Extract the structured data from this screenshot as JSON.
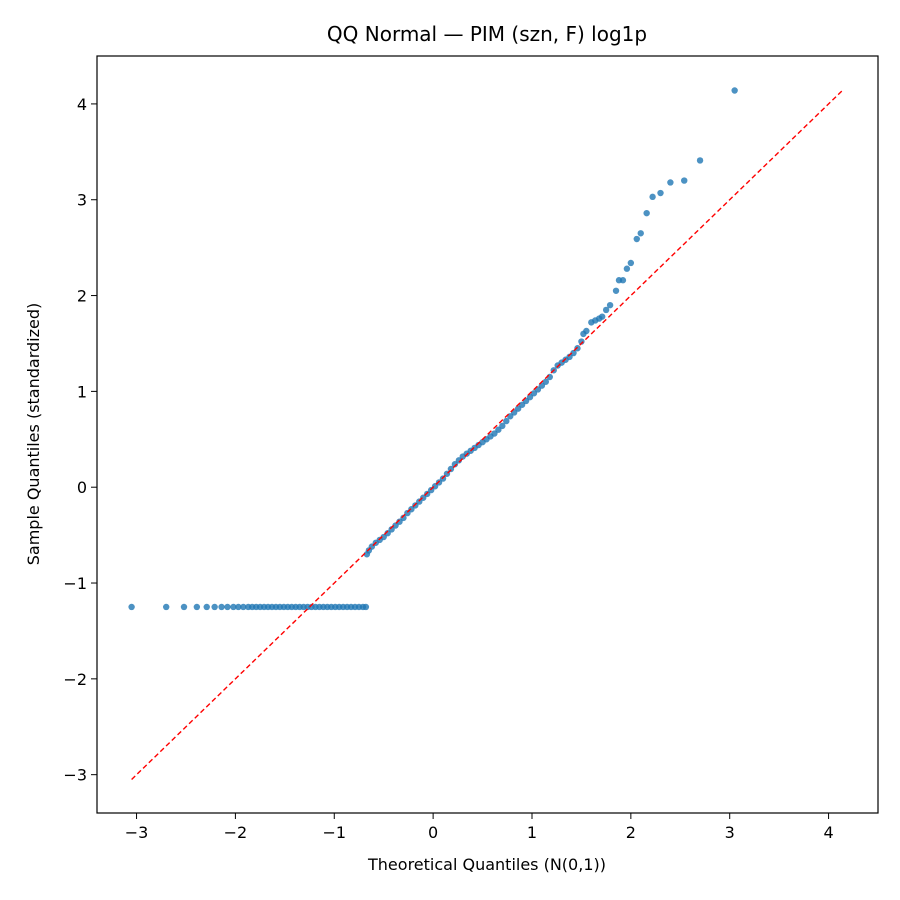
{
  "chart_data": {
    "type": "scatter",
    "title": "QQ Normal — PIM (szn, F) log1p",
    "xlabel": "Theoretical Quantiles (N(0,1))",
    "ylabel": "Sample Quantiles (standardized)",
    "xlim": [
      -3.4,
      4.5
    ],
    "ylim": [
      -3.4,
      4.5
    ],
    "xticks": [
      -3,
      -2,
      -1,
      0,
      1,
      2,
      3,
      4
    ],
    "yticks": [
      -3,
      -2,
      -1,
      0,
      1,
      2,
      3,
      4
    ],
    "grid": false,
    "colors": {
      "points": "#1f77b4",
      "reference_line": "#ff0000"
    },
    "reference_line": {
      "style": "dashed",
      "from": [
        -3.05,
        -3.05
      ],
      "to": [
        4.14,
        4.14
      ]
    },
    "series": [
      {
        "values": [
          [
            -3.05,
            -1.25
          ],
          [
            -2.7,
            -1.25
          ],
          [
            -2.52,
            -1.25
          ],
          [
            -2.39,
            -1.25
          ],
          [
            -2.29,
            -1.25
          ],
          [
            -2.21,
            -1.25
          ],
          [
            -2.14,
            -1.25
          ],
          [
            -2.08,
            -1.25
          ],
          [
            -2.02,
            -1.25
          ],
          [
            -1.97,
            -1.25
          ],
          [
            -1.92,
            -1.25
          ],
          [
            -1.87,
            -1.25
          ],
          [
            -1.83,
            -1.25
          ],
          [
            -1.79,
            -1.25
          ],
          [
            -1.75,
            -1.25
          ],
          [
            -1.71,
            -1.25
          ],
          [
            -1.67,
            -1.25
          ],
          [
            -1.63,
            -1.25
          ],
          [
            -1.59,
            -1.25
          ],
          [
            -1.55,
            -1.25
          ],
          [
            -1.51,
            -1.25
          ],
          [
            -1.47,
            -1.25
          ],
          [
            -1.43,
            -1.25
          ],
          [
            -1.39,
            -1.25
          ],
          [
            -1.35,
            -1.25
          ],
          [
            -1.31,
            -1.25
          ],
          [
            -1.27,
            -1.25
          ],
          [
            -1.23,
            -1.25
          ],
          [
            -1.19,
            -1.25
          ],
          [
            -1.15,
            -1.25
          ],
          [
            -1.11,
            -1.25
          ],
          [
            -1.07,
            -1.25
          ],
          [
            -1.03,
            -1.25
          ],
          [
            -0.99,
            -1.25
          ],
          [
            -0.95,
            -1.25
          ],
          [
            -0.91,
            -1.25
          ],
          [
            -0.87,
            -1.25
          ],
          [
            -0.83,
            -1.25
          ],
          [
            -0.79,
            -1.25
          ],
          [
            -0.75,
            -1.25
          ],
          [
            -0.71,
            -1.25
          ],
          [
            -0.68,
            -1.25
          ],
          [
            -0.67,
            -0.7
          ],
          [
            -0.65,
            -0.66
          ],
          [
            -0.62,
            -0.62
          ],
          [
            -0.58,
            -0.58
          ],
          [
            -0.54,
            -0.55
          ],
          [
            -0.5,
            -0.52
          ],
          [
            -0.46,
            -0.48
          ],
          [
            -0.42,
            -0.44
          ],
          [
            -0.38,
            -0.4
          ],
          [
            -0.34,
            -0.36
          ],
          [
            -0.3,
            -0.32
          ],
          [
            -0.26,
            -0.27
          ],
          [
            -0.22,
            -0.23
          ],
          [
            -0.18,
            -0.19
          ],
          [
            -0.14,
            -0.15
          ],
          [
            -0.1,
            -0.11
          ],
          [
            -0.06,
            -0.07
          ],
          [
            -0.02,
            -0.03
          ],
          [
            0.02,
            0.01
          ],
          [
            0.06,
            0.05
          ],
          [
            0.1,
            0.09
          ],
          [
            0.14,
            0.14
          ],
          [
            0.18,
            0.19
          ],
          [
            0.22,
            0.24
          ],
          [
            0.26,
            0.28
          ],
          [
            0.3,
            0.32
          ],
          [
            0.34,
            0.35
          ],
          [
            0.38,
            0.38
          ],
          [
            0.42,
            0.41
          ],
          [
            0.46,
            0.44
          ],
          [
            0.5,
            0.47
          ],
          [
            0.54,
            0.5
          ],
          [
            0.58,
            0.53
          ],
          [
            0.62,
            0.56
          ],
          [
            0.66,
            0.6
          ],
          [
            0.7,
            0.64
          ],
          [
            0.74,
            0.69
          ],
          [
            0.78,
            0.74
          ],
          [
            0.82,
            0.78
          ],
          [
            0.86,
            0.82
          ],
          [
            0.9,
            0.86
          ],
          [
            0.94,
            0.9
          ],
          [
            0.98,
            0.94
          ],
          [
            1.02,
            0.98
          ],
          [
            1.06,
            1.02
          ],
          [
            1.1,
            1.06
          ],
          [
            1.14,
            1.1
          ],
          [
            1.18,
            1.15
          ],
          [
            1.22,
            1.22
          ],
          [
            1.26,
            1.27
          ],
          [
            1.3,
            1.3
          ],
          [
            1.34,
            1.33
          ],
          [
            1.38,
            1.36
          ],
          [
            1.42,
            1.4
          ],
          [
            1.46,
            1.45
          ],
          [
            1.5,
            1.52
          ],
          [
            1.52,
            1.6
          ],
          [
            1.55,
            1.63
          ],
          [
            1.6,
            1.72
          ],
          [
            1.64,
            1.74
          ],
          [
            1.68,
            1.76
          ],
          [
            1.71,
            1.78
          ],
          [
            1.75,
            1.85
          ],
          [
            1.79,
            1.9
          ],
          [
            1.85,
            2.05
          ],
          [
            1.88,
            2.16
          ],
          [
            1.92,
            2.16
          ],
          [
            1.96,
            2.28
          ],
          [
            2.0,
            2.34
          ],
          [
            2.06,
            2.59
          ],
          [
            2.1,
            2.65
          ],
          [
            2.16,
            2.86
          ],
          [
            2.22,
            3.03
          ],
          [
            2.3,
            3.07
          ],
          [
            2.4,
            3.18
          ],
          [
            2.54,
            3.2
          ],
          [
            2.7,
            3.41
          ],
          [
            3.05,
            4.14
          ]
        ]
      }
    ]
  }
}
